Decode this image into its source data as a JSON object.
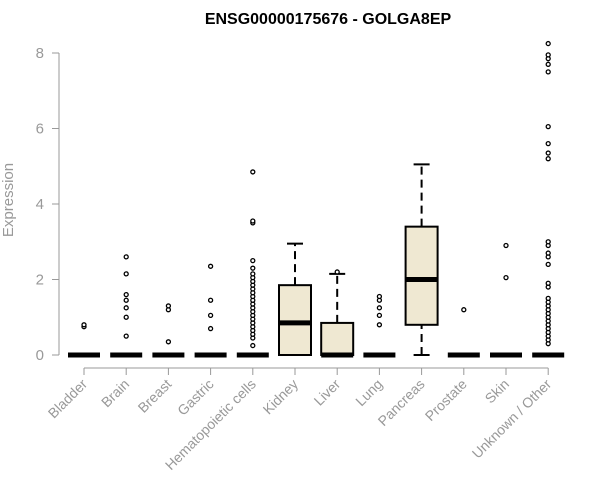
{
  "chart_data": {
    "type": "box",
    "title": "ENSG00000175676 - GOLGA8EP",
    "xlabel": "",
    "ylabel": "Expression",
    "ylim": [
      0,
      8.3
    ],
    "yticks": [
      0,
      2,
      4,
      6,
      8
    ],
    "colors": {
      "box_fill": "#efe8d2",
      "box_stroke": "#000000",
      "axis": "#999999"
    },
    "categories": [
      "Bladder",
      "Brain",
      "Breast",
      "Gastric",
      "Hematopoietic cells",
      "Kidney",
      "Liver",
      "Lung",
      "Pancreas",
      "Prostate",
      "Skin",
      "Unknown / Other"
    ],
    "boxes": [
      {
        "category": "Bladder",
        "min": 0,
        "q1": 0,
        "median": 0,
        "q3": 0,
        "max": 0,
        "outliers": [
          0.75,
          0.8
        ]
      },
      {
        "category": "Brain",
        "min": 0,
        "q1": 0,
        "median": 0,
        "q3": 0,
        "max": 0,
        "outliers": [
          0.5,
          1.0,
          1.25,
          1.45,
          1.6,
          2.15,
          2.6
        ]
      },
      {
        "category": "Breast",
        "min": 0,
        "q1": 0,
        "median": 0,
        "q3": 0,
        "max": 0,
        "outliers": [
          0.35,
          1.2,
          1.3
        ]
      },
      {
        "category": "Gastric",
        "min": 0,
        "q1": 0,
        "median": 0,
        "q3": 0,
        "max": 0,
        "outliers": [
          0.7,
          1.05,
          1.45,
          2.35
        ]
      },
      {
        "category": "Hematopoietic cells",
        "min": 0,
        "q1": 0,
        "median": 0,
        "q3": 0,
        "max": 0,
        "outliers": [
          0.25,
          0.45,
          0.55,
          0.65,
          0.75,
          0.85,
          0.95,
          1.05,
          1.15,
          1.25,
          1.35,
          1.45,
          1.55,
          1.65,
          1.75,
          1.85,
          1.95,
          2.05,
          2.15,
          2.3,
          2.5,
          3.5,
          3.55,
          4.85
        ]
      },
      {
        "category": "Kidney",
        "min": 0,
        "q1": 0,
        "median": 0.85,
        "q3": 1.85,
        "max": 2.95,
        "outliers": []
      },
      {
        "category": "Liver",
        "min": 0,
        "q1": 0,
        "median": 0,
        "q3": 0.85,
        "max": 2.15,
        "outliers": [
          2.2
        ]
      },
      {
        "category": "Lung",
        "min": 0,
        "q1": 0,
        "median": 0,
        "q3": 0,
        "max": 0,
        "outliers": [
          0.8,
          1.05,
          1.25,
          1.45,
          1.55
        ]
      },
      {
        "category": "Pancreas",
        "min": 0,
        "q1": 0.8,
        "median": 2.0,
        "q3": 3.4,
        "max": 5.05,
        "outliers": []
      },
      {
        "category": "Prostate",
        "min": 0,
        "q1": 0,
        "median": 0,
        "q3": 0,
        "max": 0,
        "outliers": [
          1.2
        ]
      },
      {
        "category": "Skin",
        "min": 0,
        "q1": 0,
        "median": 0,
        "q3": 0,
        "max": 0,
        "outliers": [
          2.05,
          2.9
        ]
      },
      {
        "category": "Unknown / Other",
        "min": 0,
        "q1": 0,
        "median": 0,
        "q3": 0,
        "max": 0,
        "outliers": [
          0.3,
          0.4,
          0.5,
          0.6,
          0.7,
          0.8,
          0.9,
          1.0,
          1.1,
          1.2,
          1.3,
          1.4,
          1.5,
          1.8,
          1.9,
          2.4,
          2.6,
          2.7,
          2.9,
          3.0,
          5.2,
          5.35,
          5.6,
          6.05,
          7.5,
          7.7,
          7.85,
          7.95,
          8.25
        ]
      }
    ]
  }
}
